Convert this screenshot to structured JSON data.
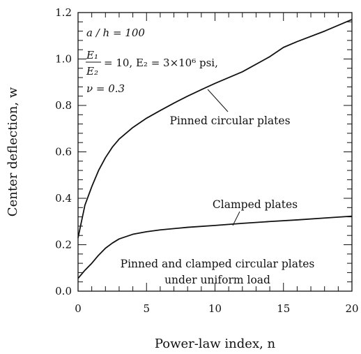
{
  "chart_data": {
    "type": "line",
    "xlabel": "Power-law index, n",
    "ylabel": "Center deflection, w",
    "xlim": [
      0,
      20
    ],
    "ylim": [
      0.0,
      1.2
    ],
    "x_ticks": [
      "0",
      "5",
      "10",
      "15",
      "20"
    ],
    "y_ticks": [
      "0.0",
      "0.2",
      "0.4",
      "0.6",
      "0.8",
      "1.0",
      "1.2"
    ],
    "grid": false,
    "parameters": {
      "line1": "a / h = 100",
      "ratio_num": "E₁",
      "ratio_den": "E₂",
      "ratio_value": "= 10,  E₂ = 3×10⁶ psi,",
      "line3": "ν = 0.3"
    },
    "annotations": {
      "pinned": "Pinned circular plates",
      "clamped": "Clamped plates",
      "caption_line1": "Pinned and clamped circular plates",
      "caption_line2": "under uniform load"
    },
    "series": [
      {
        "x": [
          0,
          0.25,
          0.5,
          0.75,
          1,
          1.5,
          2,
          2.5,
          3,
          4,
          5,
          6,
          7,
          8,
          9,
          10,
          12,
          14,
          15,
          16,
          18,
          20
        ],
        "y": [
          0.23,
          0.3,
          0.37,
          0.41,
          0.45,
          0.52,
          0.575,
          0.62,
          0.655,
          0.705,
          0.745,
          0.778,
          0.81,
          0.84,
          0.868,
          0.895,
          0.945,
          1.01,
          1.05,
          1.075,
          1.12,
          1.17
        ]
      },
      {
        "x": [
          0,
          0.5,
          1,
          1.5,
          2,
          2.5,
          3,
          4,
          5,
          6,
          8,
          10,
          12,
          14,
          16,
          18,
          20
        ],
        "y": [
          0.055,
          0.09,
          0.12,
          0.155,
          0.185,
          0.207,
          0.225,
          0.245,
          0.256,
          0.264,
          0.275,
          0.283,
          0.292,
          0.3,
          0.307,
          0.315,
          0.323
        ]
      }
    ]
  }
}
